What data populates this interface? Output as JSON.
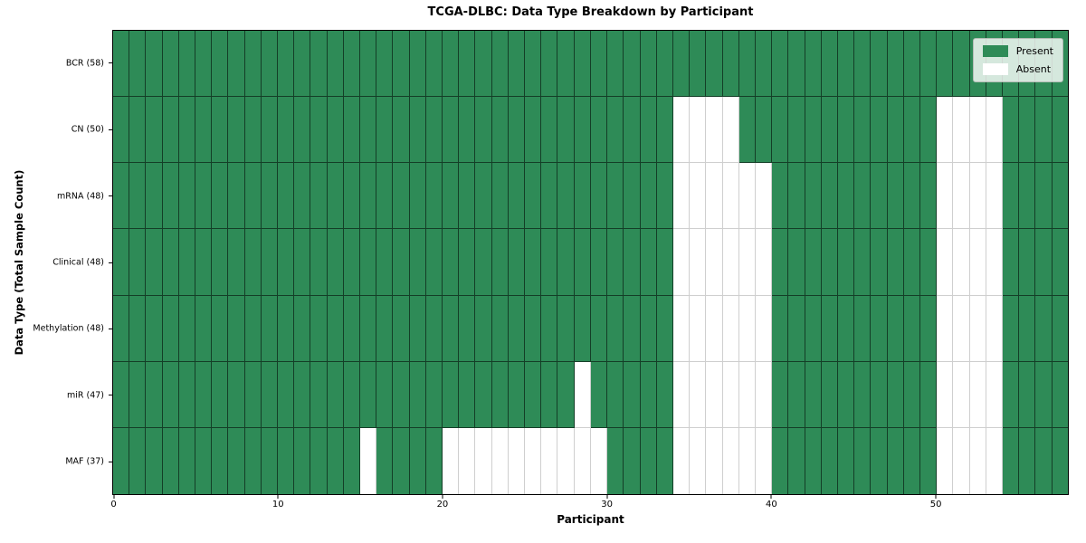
{
  "chart_data": {
    "type": "heatmap",
    "title": "TCGA-DLBC: Data Type Breakdown by Participant",
    "xlabel": "Participant",
    "ylabel": "Data Type (Total Sample Count)",
    "n_participants": 58,
    "x_range": [
      0,
      58
    ],
    "x_ticks": [
      0,
      10,
      20,
      30,
      40,
      50
    ],
    "present_color": "#2e8b57",
    "absent_color": "#ffffff",
    "legend_position": "upper right",
    "grid": true,
    "legend": [
      {
        "label": "Present",
        "color": "#2e8b57"
      },
      {
        "label": "Absent",
        "color": "#ffffff"
      }
    ],
    "rows": [
      {
        "label": "BCR (58)",
        "data_type": "BCR",
        "total_samples": 58,
        "absent_participants": []
      },
      {
        "label": "CN (50)",
        "data_type": "CN",
        "total_samples": 50,
        "absent_participants": [
          34,
          35,
          36,
          37,
          50,
          51,
          52,
          53
        ]
      },
      {
        "label": "mRNA (48)",
        "data_type": "mRNA",
        "total_samples": 48,
        "absent_participants": [
          34,
          35,
          36,
          37,
          38,
          39,
          50,
          51,
          52,
          53
        ]
      },
      {
        "label": "Clinical (48)",
        "data_type": "Clinical",
        "total_samples": 48,
        "absent_participants": [
          34,
          35,
          36,
          37,
          38,
          39,
          50,
          51,
          52,
          53
        ]
      },
      {
        "label": "Methylation (48)",
        "data_type": "Methylation",
        "total_samples": 48,
        "absent_participants": [
          34,
          35,
          36,
          37,
          38,
          39,
          50,
          51,
          52,
          53
        ]
      },
      {
        "label": "miR (47)",
        "data_type": "miR",
        "total_samples": 47,
        "absent_participants": [
          28,
          34,
          35,
          36,
          37,
          38,
          39,
          50,
          51,
          52,
          53
        ]
      },
      {
        "label": "MAF (37)",
        "data_type": "MAF",
        "total_samples": 37,
        "absent_participants": [
          15,
          20,
          21,
          22,
          23,
          24,
          25,
          26,
          27,
          28,
          29,
          34,
          35,
          36,
          37,
          38,
          39,
          50,
          51,
          52,
          53
        ]
      }
    ]
  }
}
